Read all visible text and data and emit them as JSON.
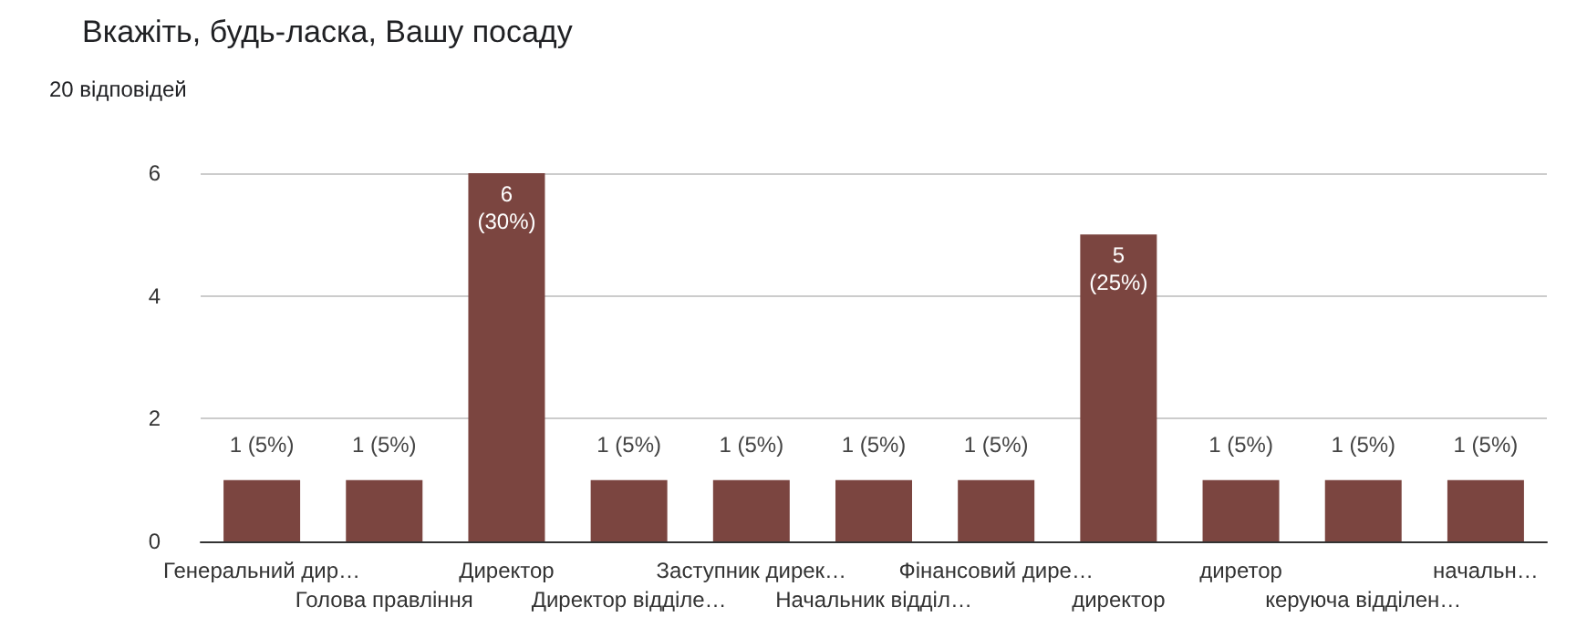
{
  "chart_data": {
    "type": "bar",
    "title": "Вкажіть, будь-ласка, Вашу посаду",
    "subtitle": "20 відповідей",
    "categories": [
      "Генеральний дир…",
      "Голова правління",
      "Директор",
      "Директор відділе…",
      "Заступник дирек…",
      "Начальник відділ…",
      "Фінансовий дире…",
      "директор",
      "диретор",
      "керуюча відділен…",
      "начальн…"
    ],
    "values": [
      1,
      1,
      6,
      1,
      1,
      1,
      1,
      5,
      1,
      1,
      1
    ],
    "value_labels": [
      "1 (5%)",
      "1 (5%)",
      "6\n(30%)",
      "1 (5%)",
      "1 (5%)",
      "1 (5%)",
      "1 (5%)",
      "5\n(25%)",
      "1 (5%)",
      "1 (5%)",
      "1 (5%)"
    ],
    "color": "#7b4540",
    "ylim": [
      0,
      6
    ],
    "yticks": [
      0,
      2,
      4,
      6
    ],
    "grid": "y"
  }
}
